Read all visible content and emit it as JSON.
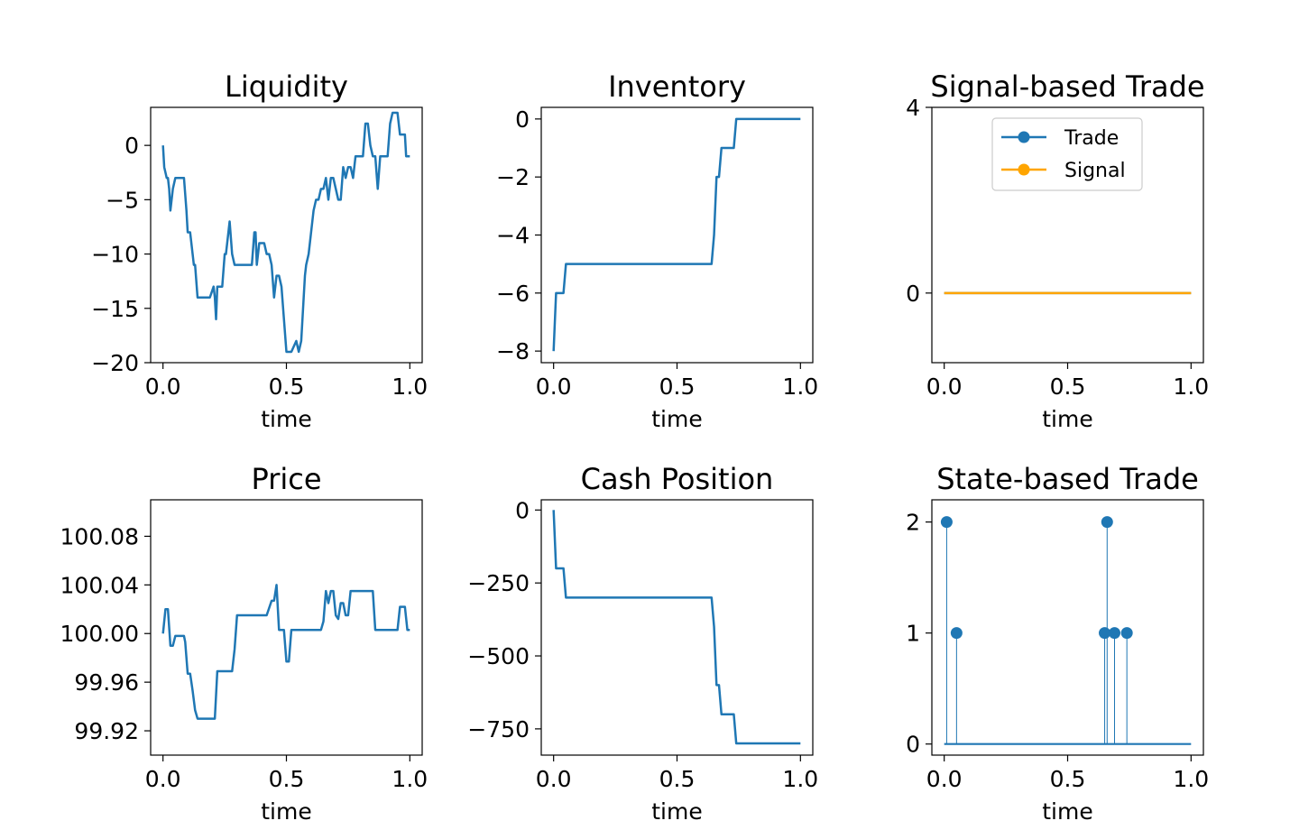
{
  "chart_data": [
    {
      "id": "liquidity",
      "type": "line",
      "title": "Liquidity",
      "xlabel": "time",
      "ylabel": "",
      "xlim": [
        -0.05,
        1.05
      ],
      "ylim": [
        -20,
        3.5
      ],
      "xticks": [
        0.0,
        0.5,
        1.0
      ],
      "xticklabels": [
        "0.0",
        "0.5",
        "1.0"
      ],
      "yticks": [
        0,
        -5,
        -10,
        -15,
        -20
      ],
      "yticklabels": [
        "0",
        "−5",
        "−10",
        "−15",
        "−20"
      ],
      "series": [
        {
          "color": "#1f77b4",
          "x": [
            0.0,
            0.005,
            0.015,
            0.02,
            0.025,
            0.03,
            0.04,
            0.05,
            0.06,
            0.07,
            0.085,
            0.095,
            0.1,
            0.105,
            0.11,
            0.12,
            0.125,
            0.13,
            0.14,
            0.15,
            0.16,
            0.19,
            0.205,
            0.21,
            0.215,
            0.22,
            0.23,
            0.24,
            0.25,
            0.255,
            0.26,
            0.27,
            0.28,
            0.29,
            0.3,
            0.31,
            0.33,
            0.36,
            0.37,
            0.375,
            0.38,
            0.385,
            0.39,
            0.395,
            0.4,
            0.41,
            0.42,
            0.43,
            0.44,
            0.45,
            0.46,
            0.47,
            0.48,
            0.49,
            0.5,
            0.505,
            0.51,
            0.52,
            0.54,
            0.55,
            0.56,
            0.57,
            0.575,
            0.58,
            0.59,
            0.6,
            0.61,
            0.62,
            0.63,
            0.64,
            0.65,
            0.66,
            0.67,
            0.68,
            0.69,
            0.7,
            0.71,
            0.72,
            0.73,
            0.74,
            0.75,
            0.76,
            0.77,
            0.78,
            0.79,
            0.8,
            0.81,
            0.82,
            0.83,
            0.84,
            0.85,
            0.86,
            0.87,
            0.88,
            0.89,
            0.9,
            0.91,
            0.92,
            0.93,
            0.94,
            0.95,
            0.96,
            0.97,
            0.98,
            0.985,
            0.99,
            1.0
          ],
          "y": [
            0,
            -2,
            -3,
            -3,
            -4,
            -6,
            -4,
            -3,
            -3,
            -3,
            -3,
            -6,
            -8,
            -8,
            -8,
            -10,
            -11,
            -11,
            -14,
            -14,
            -14,
            -14,
            -13,
            -14,
            -16,
            -13,
            -13,
            -13,
            -10,
            -10,
            -9,
            -7,
            -10,
            -11,
            -11,
            -11,
            -11,
            -11,
            -8,
            -8,
            -11,
            -10,
            -9,
            -9,
            -9,
            -9,
            -10,
            -10,
            -11,
            -14,
            -12,
            -12,
            -13,
            -16,
            -19,
            -19,
            -19,
            -19,
            -18,
            -19,
            -18,
            -14,
            -12,
            -11,
            -10,
            -8,
            -6,
            -5,
            -5,
            -4,
            -4,
            -3,
            -5,
            -3,
            -3,
            -4,
            -5,
            -5,
            -2,
            -3,
            -2,
            -2,
            -3,
            -1,
            -1,
            -1,
            -1,
            2,
            2,
            0,
            -1,
            -1,
            -4,
            -1,
            -1,
            -1,
            -1,
            2,
            3,
            3,
            3,
            1,
            1,
            1,
            -1,
            -1,
            -1
          ]
        }
      ]
    },
    {
      "id": "inventory",
      "type": "line",
      "title": "Inventory",
      "xlabel": "time",
      "ylabel": "",
      "xlim": [
        -0.05,
        1.05
      ],
      "ylim": [
        -8.4,
        0.4
      ],
      "xticks": [
        0.0,
        0.5,
        1.0
      ],
      "xticklabels": [
        "0.0",
        "0.5",
        "1.0"
      ],
      "yticks": [
        0,
        -2,
        -4,
        -6,
        -8
      ],
      "yticklabels": [
        "0",
        "−2",
        "−4",
        "−6",
        "−8"
      ],
      "series": [
        {
          "color": "#1f77b4",
          "x": [
            0.0,
            0.01,
            0.015,
            0.04,
            0.05,
            0.64,
            0.65,
            0.66,
            0.67,
            0.68,
            0.69,
            0.72,
            0.73,
            0.74,
            1.0
          ],
          "y": [
            -8,
            -6,
            -6,
            -6,
            -5,
            -5,
            -4,
            -2,
            -2,
            -1,
            -1,
            -1,
            -1,
            0,
            0
          ]
        }
      ]
    },
    {
      "id": "signal_trade",
      "type": "line",
      "title": "Signal-based Trade",
      "xlabel": "time",
      "ylabel": "",
      "xlim": [
        -0.05,
        1.05
      ],
      "ylim": [
        -1.5,
        4
      ],
      "xticks": [
        0.0,
        0.5,
        1.0
      ],
      "xticklabels": [
        "0.0",
        "0.5",
        "1.0"
      ],
      "yticks": [
        4,
        0
      ],
      "yticklabels": [
        "4",
        "0"
      ],
      "legend_position": "upper center",
      "series": [
        {
          "name": "Trade",
          "color": "#1f77b4",
          "marker": "o",
          "x": [
            0.0,
            1.0
          ],
          "y": [
            0,
            0
          ]
        },
        {
          "name": "Signal",
          "color": "#ffa500",
          "marker": "o",
          "x": [
            0.0,
            1.0
          ],
          "y": [
            0,
            0
          ]
        }
      ]
    },
    {
      "id": "price",
      "type": "line",
      "title": "Price",
      "xlabel": "time",
      "ylabel": "",
      "xlim": [
        -0.05,
        1.05
      ],
      "ylim": [
        99.9,
        100.11
      ],
      "xticks": [
        0.0,
        0.5,
        1.0
      ],
      "xticklabels": [
        "0.0",
        "0.5",
        "1.0"
      ],
      "yticks": [
        100.08,
        100.04,
        100.0,
        99.96,
        99.92
      ],
      "yticklabels": [
        "100.08",
        "100.04",
        "100.00",
        "99.96",
        "99.92"
      ],
      "series": [
        {
          "color": "#1f77b4",
          "x": [
            0.0,
            0.01,
            0.02,
            0.03,
            0.04,
            0.05,
            0.06,
            0.085,
            0.09,
            0.1,
            0.11,
            0.12,
            0.13,
            0.14,
            0.15,
            0.16,
            0.17,
            0.2,
            0.21,
            0.22,
            0.25,
            0.28,
            0.29,
            0.3,
            0.35,
            0.38,
            0.41,
            0.42,
            0.44,
            0.45,
            0.46,
            0.47,
            0.49,
            0.5,
            0.51,
            0.52,
            0.55,
            0.6,
            0.64,
            0.65,
            0.66,
            0.67,
            0.68,
            0.69,
            0.7,
            0.71,
            0.72,
            0.73,
            0.74,
            0.75,
            0.76,
            0.77,
            0.8,
            0.85,
            0.86,
            0.87,
            0.9,
            0.95,
            0.96,
            0.97,
            0.98,
            0.99,
            1.0
          ],
          "y": [
            100.0,
            100.02,
            100.02,
            99.99,
            99.99,
            99.998,
            99.998,
            99.998,
            99.993,
            99.967,
            99.967,
            99.953,
            99.937,
            99.93,
            99.93,
            99.93,
            99.93,
            99.93,
            99.93,
            99.969,
            99.969,
            99.969,
            99.987,
            100.015,
            100.015,
            100.015,
            100.015,
            100.015,
            100.027,
            100.027,
            100.04,
            100.003,
            100.003,
            99.977,
            99.977,
            100.003,
            100.003,
            100.003,
            100.003,
            100.01,
            100.035,
            100.025,
            100.035,
            100.035,
            100.015,
            100.012,
            100.025,
            100.025,
            100.015,
            100.015,
            100.035,
            100.035,
            100.035,
            100.035,
            100.003,
            100.003,
            100.003,
            100.003,
            100.022,
            100.022,
            100.022,
            100.003,
            100.003
          ]
        }
      ]
    },
    {
      "id": "cash",
      "type": "line",
      "title": "Cash Position",
      "xlabel": "time",
      "ylabel": "",
      "xlim": [
        -0.05,
        1.05
      ],
      "ylim": [
        -840,
        35
      ],
      "xticks": [
        0.0,
        0.5,
        1.0
      ],
      "xticklabels": [
        "0.0",
        "0.5",
        "1.0"
      ],
      "yticks": [
        0,
        -250,
        -500,
        -750
      ],
      "yticklabels": [
        "0",
        "−250",
        "−500",
        "−750"
      ],
      "series": [
        {
          "color": "#1f77b4",
          "x": [
            0.0,
            0.01,
            0.015,
            0.04,
            0.05,
            0.64,
            0.65,
            0.66,
            0.67,
            0.68,
            0.69,
            0.72,
            0.73,
            0.74,
            1.0
          ],
          "y": [
            0,
            -200,
            -200,
            -200,
            -300,
            -300,
            -400,
            -600,
            -600,
            -700,
            -700,
            -700,
            -700,
            -800,
            -800
          ]
        }
      ]
    },
    {
      "id": "state_trade",
      "type": "stem",
      "title": "State-based Trade",
      "xlabel": "time",
      "ylabel": "",
      "xlim": [
        -0.05,
        1.05
      ],
      "ylim": [
        -0.1,
        2.2
      ],
      "xticks": [
        0.0,
        0.5,
        1.0
      ],
      "xticklabels": [
        "0.0",
        "0.5",
        "1.0"
      ],
      "yticks": [
        2,
        1,
        0
      ],
      "yticklabels": [
        "2",
        "1",
        "0"
      ],
      "series": [
        {
          "color": "#1f77b4",
          "marker": "o",
          "x": [
            0.01,
            0.05,
            0.65,
            0.66,
            0.69,
            0.74
          ],
          "y": [
            2,
            1,
            1,
            2,
            1,
            1
          ]
        }
      ]
    }
  ]
}
